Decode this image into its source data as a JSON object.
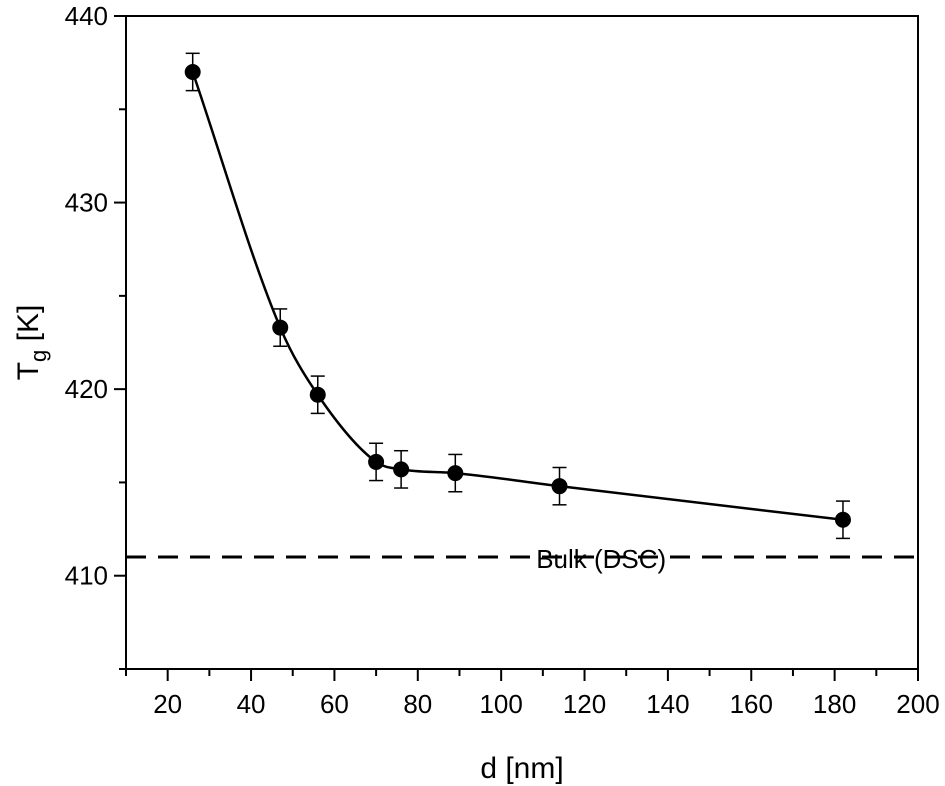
{
  "chart_data": {
    "type": "scatter",
    "xlabel": "d [nm]",
    "ylabel_main": "T",
    "ylabel_sub": "g",
    "ylabel_unit": "[K]",
    "xlim": [
      10,
      200
    ],
    "ylim": [
      405,
      440
    ],
    "x_ticks": [
      20,
      40,
      60,
      80,
      100,
      120,
      140,
      160,
      180,
      200
    ],
    "y_ticks": [
      410,
      420,
      430,
      440
    ],
    "x_minor_step": 10,
    "y_minor_step": 5,
    "grid": false,
    "series": [
      {
        "marker": "filled-circle",
        "line": "smooth",
        "color": "#000000",
        "points": [
          {
            "x": 26,
            "y": 437.0,
            "err": 1.0
          },
          {
            "x": 47,
            "y": 423.3,
            "err": 1.0
          },
          {
            "x": 56,
            "y": 419.7,
            "err": 1.0
          },
          {
            "x": 70,
            "y": 416.1,
            "err": 1.0
          },
          {
            "x": 76,
            "y": 415.7,
            "err": 1.0
          },
          {
            "x": 89,
            "y": 415.5,
            "err": 1.0
          },
          {
            "x": 114,
            "y": 414.8,
            "err": 1.0
          },
          {
            "x": 182,
            "y": 413.0,
            "err": 1.0
          }
        ]
      }
    ],
    "reference_line": {
      "y": 411.0,
      "style": "dashed",
      "label": "Bulk (DSC)",
      "label_x": 124
    }
  }
}
